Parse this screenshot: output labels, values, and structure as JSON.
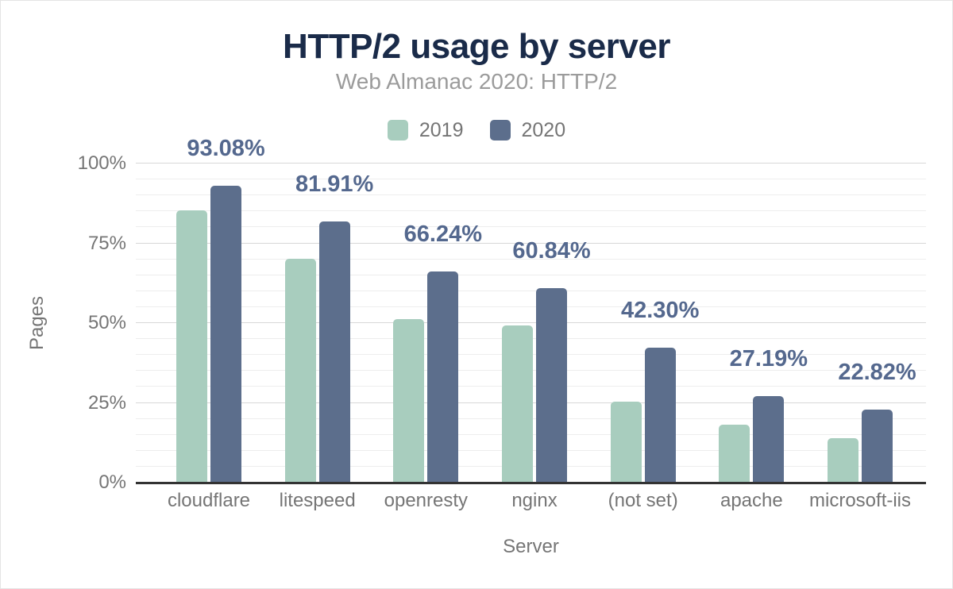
{
  "header": {
    "title": "HTTP/2 usage by server",
    "subtitle": "Web Almanac 2020: HTTP/2"
  },
  "legend": [
    {
      "label": "2019",
      "color": "#a8cdbe"
    },
    {
      "label": "2020",
      "color": "#5c6e8c"
    }
  ],
  "axes": {
    "y_title": "Pages",
    "x_title": "Server",
    "y_tick_labels": [
      "0%",
      "25%",
      "50%",
      "75%",
      "100%"
    ]
  },
  "colors": {
    "series_2019": "#a8cdbe",
    "series_2020": "#5c6e8c",
    "title": "#1a2b49",
    "subtitle": "#9b9b9b",
    "axis_text": "#757575",
    "data_label": "#54688e",
    "gridline_minor": "#ededed",
    "gridline_major": "#d8d8d8",
    "baseline": "#333333"
  },
  "chart_data": {
    "type": "bar",
    "title": "HTTP/2 usage by server",
    "subtitle": "Web Almanac 2020: HTTP/2",
    "xlabel": "Server",
    "ylabel": "Pages",
    "ylim": [
      0,
      100
    ],
    "y_major_ticks": [
      0,
      25,
      50,
      75,
      100
    ],
    "y_minor_step": 5,
    "grid": true,
    "legend_position": "top",
    "categories": [
      "cloudflare",
      "litespeed",
      "openresty",
      "nginx",
      "(not set)",
      "apache",
      "microsoft-iis"
    ],
    "series": [
      {
        "name": "2019",
        "color": "#a8cdbe",
        "values": [
          85.4,
          70.1,
          51.2,
          49.3,
          25.5,
          18.1,
          14.0
        ]
      },
      {
        "name": "2020",
        "color": "#5c6e8c",
        "values": [
          93.08,
          81.91,
          66.24,
          60.84,
          42.3,
          27.19,
          22.82
        ],
        "data_labels": [
          "93.08%",
          "81.91%",
          "66.24%",
          "60.84%",
          "42.30%",
          "27.19%",
          "22.82%"
        ]
      }
    ]
  }
}
